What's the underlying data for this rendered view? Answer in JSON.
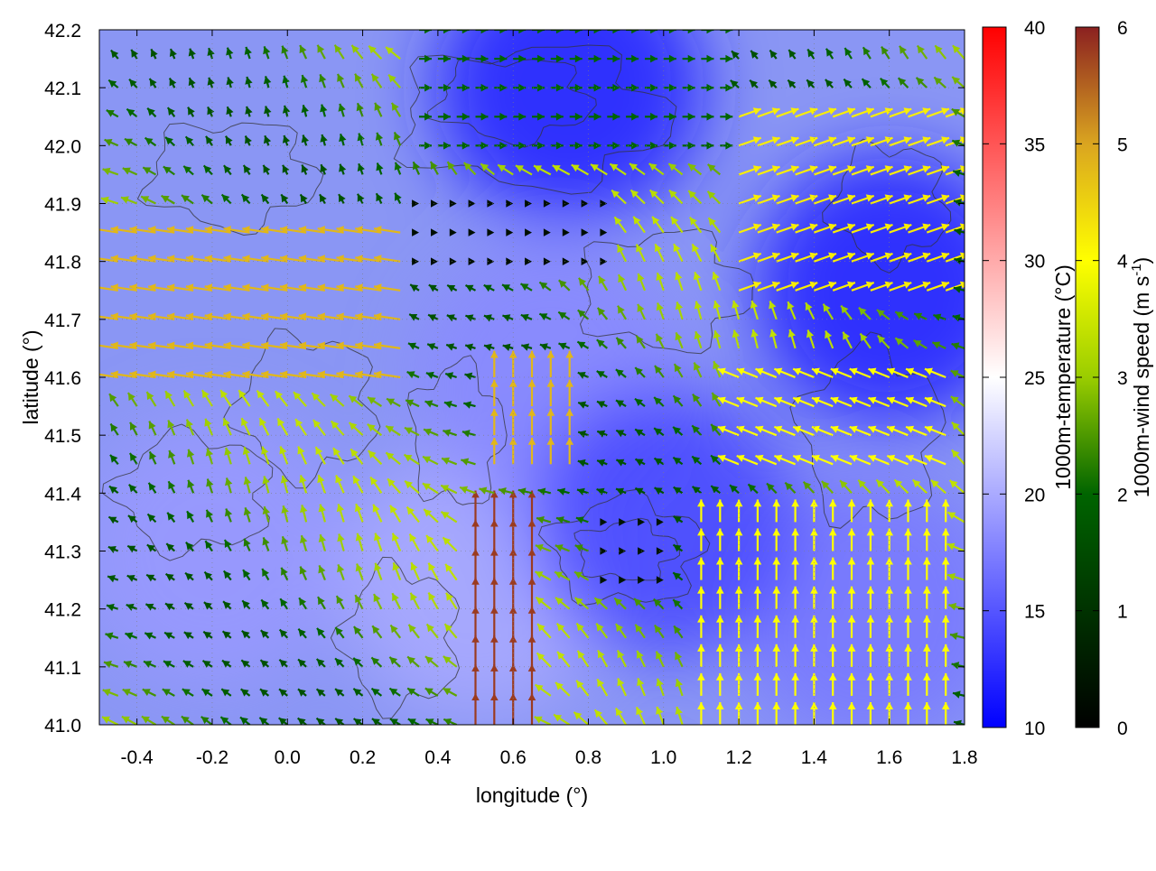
{
  "chart_data": {
    "type": "heatmap",
    "title": "",
    "xlabel": "longitude (°)",
    "ylabel": "latitude (°)",
    "xlim": [
      -0.5,
      1.8
    ],
    "ylim": [
      41.0,
      42.2
    ],
    "xticks": [
      -0.4,
      -0.2,
      0.0,
      0.2,
      0.4,
      0.6,
      0.8,
      1.0,
      1.2,
      1.4,
      1.6,
      1.8
    ],
    "xtick_labels": [
      "-0.4",
      "-0.2",
      "0.0",
      "0.2",
      "0.4",
      "0.6",
      "0.8",
      "1.0",
      "1.2",
      "1.4",
      "1.6",
      "1.8"
    ],
    "yticks": [
      41.0,
      41.1,
      41.2,
      41.3,
      41.4,
      41.5,
      41.6,
      41.7,
      41.8,
      41.9,
      42.0,
      42.1,
      42.2
    ],
    "ytick_labels": [
      "41.0",
      "41.1",
      "41.2",
      "41.3",
      "41.4",
      "41.5",
      "41.6",
      "41.7",
      "41.8",
      "41.9",
      "42.0",
      "42.1",
      "42.2"
    ],
    "grid": true,
    "temperature_colorbar": {
      "label": "1000m-temperature (°C)",
      "range": [
        10,
        40
      ],
      "ticks": [
        10,
        15,
        20,
        25,
        30,
        35,
        40
      ],
      "tick_labels": [
        "10",
        "15",
        "20",
        "25",
        "30",
        "35",
        "40"
      ],
      "colors": [
        "#0000ff",
        "#ffffff",
        "#ff0000"
      ]
    },
    "wind_colorbar": {
      "label_main": "1000m-wind speed (m s",
      "label_sup": "-1",
      "label_end": ")",
      "range": [
        0,
        6
      ],
      "ticks": [
        0,
        1,
        2,
        3,
        4,
        5,
        6
      ],
      "tick_labels": [
        "0",
        "1",
        "2",
        "3",
        "4",
        "5",
        "6"
      ],
      "colors": [
        "#000000",
        "#006400",
        "#9acd00",
        "#ffff00",
        "#daa520",
        "#8b2020"
      ]
    },
    "temperature_field_regions": [
      {
        "lon": -0.2,
        "lat": 41.3,
        "temp_c": 19
      },
      {
        "lon": 0.5,
        "lat": 41.25,
        "temp_c": 20
      },
      {
        "lon": 0.7,
        "lat": 41.6,
        "temp_c": 18
      },
      {
        "lon": 0.75,
        "lat": 42.1,
        "temp_c": 12
      },
      {
        "lon": 1.6,
        "lat": 41.75,
        "temp_c": 12
      },
      {
        "lon": 1.55,
        "lat": 41.2,
        "temp_c": 17
      },
      {
        "lon": 1.0,
        "lat": 41.35,
        "temp_c": 14
      }
    ],
    "wind_regimes": [
      {
        "lon_range": [
          -0.5,
          0.3
        ],
        "lat_range": [
          41.55,
          41.85
        ],
        "u": -1.0,
        "v": 0.15,
        "speed": 4.8
      },
      {
        "lon_range": [
          0.3,
          1.2
        ],
        "lat_range": [
          41.95,
          42.2
        ],
        "u": 1.0,
        "v": 0.0,
        "speed": 2.0
      },
      {
        "lon_range": [
          0.3,
          0.9
        ],
        "lat_range": [
          41.75,
          41.9
        ],
        "u": 0.0,
        "v": 0.0,
        "speed": 0.3
      },
      {
        "lon_range": [
          0.45,
          0.7
        ],
        "lat_range": [
          41.0,
          41.35
        ],
        "u": 0.0,
        "v": 1.0,
        "speed": 5.8
      },
      {
        "lon_range": [
          0.5,
          0.8
        ],
        "lat_range": [
          41.4,
          41.6
        ],
        "u": 0.0,
        "v": 1.0,
        "speed": 4.8
      },
      {
        "lon_range": [
          1.2,
          1.8
        ],
        "lat_range": [
          41.7,
          42.05
        ],
        "u": 1.0,
        "v": 0.35,
        "speed": 4.2
      },
      {
        "lon_range": [
          1.2,
          1.8
        ],
        "lat_range": [
          41.4,
          41.6
        ],
        "u": -1.0,
        "v": 0.4,
        "speed": 4.0
      },
      {
        "lon_range": [
          1.1,
          1.8
        ],
        "lat_range": [
          41.0,
          41.35
        ],
        "u": 0.0,
        "v": 1.0,
        "speed": 4.0
      },
      {
        "lon_range": [
          0.85,
          1.05
        ],
        "lat_range": [
          41.2,
          41.35
        ],
        "u": 0.0,
        "v": 0.0,
        "speed": 0.4
      }
    ]
  }
}
